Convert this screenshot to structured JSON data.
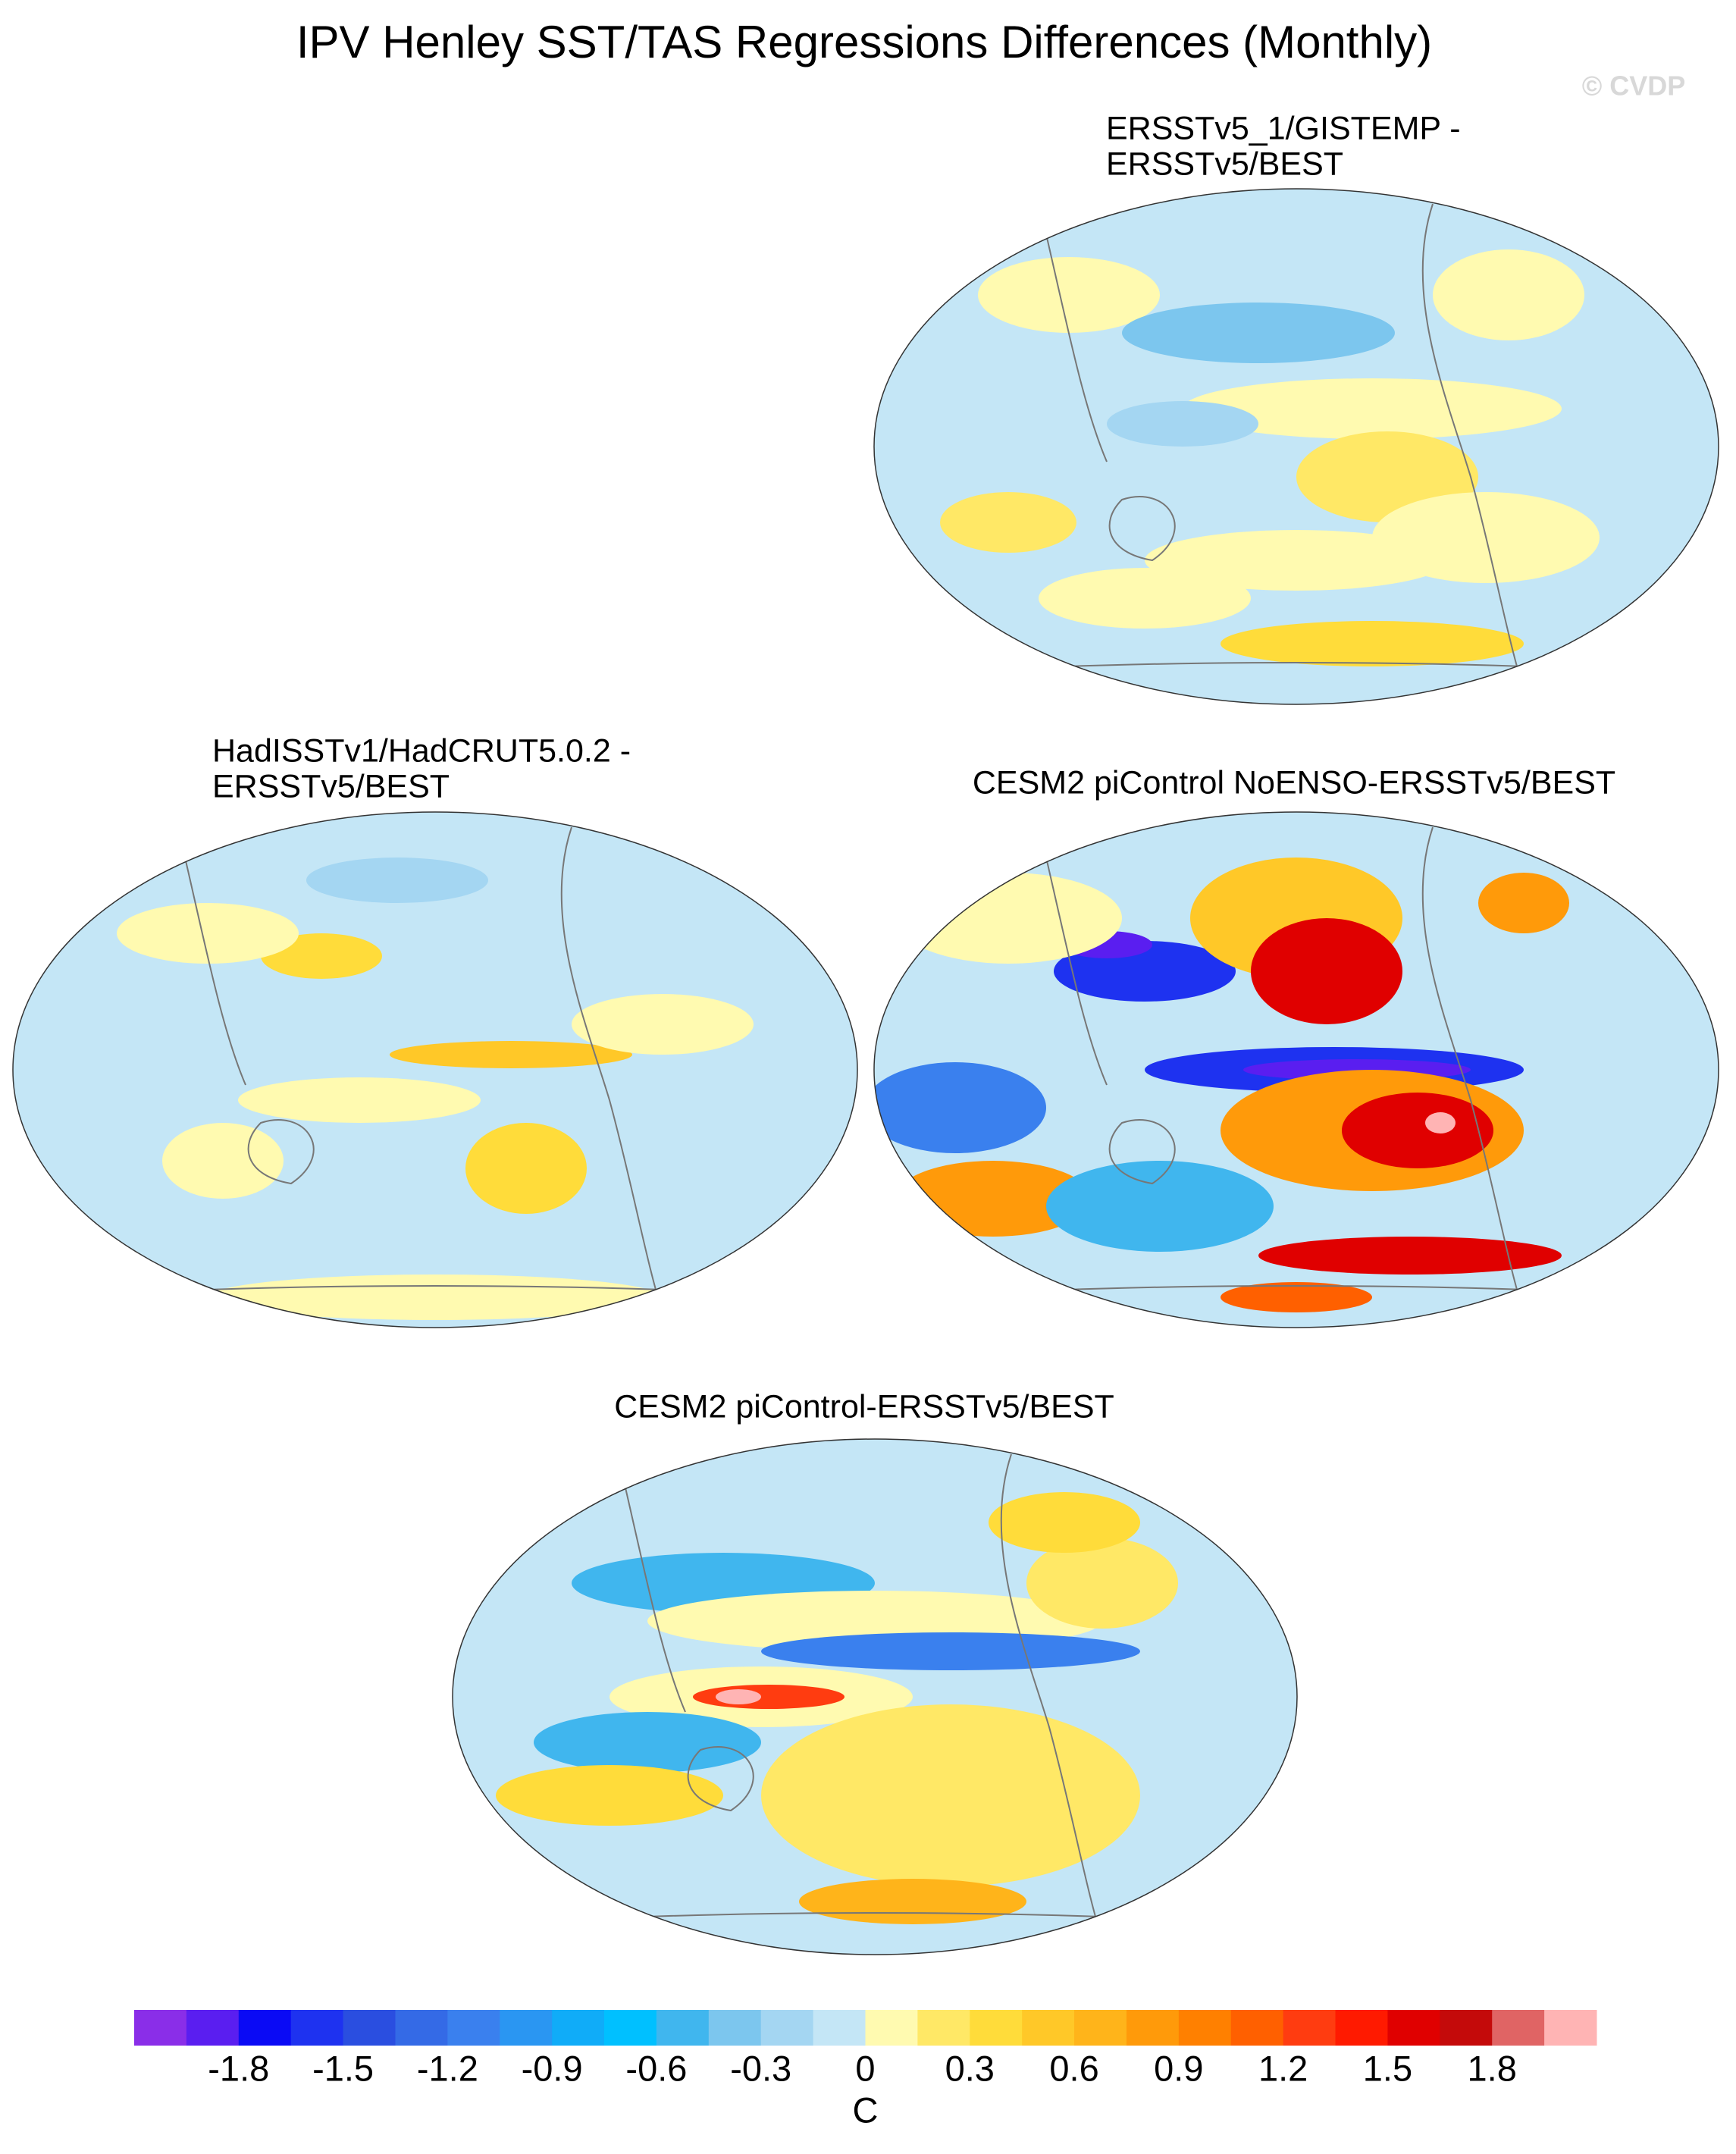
{
  "title": "IPV Henley SST/TAS Regressions Differences (Monthly)",
  "watermark": "© CVDP",
  "panels": [
    {
      "title_lines": [
        "ERSSTv5_1/GISTEMP -",
        "ERSSTv5/BEST"
      ]
    },
    {
      "title_lines": [
        "HadISSTv1/HadCRUT5.0.2 -",
        "ERSSTv5/BEST"
      ]
    },
    {
      "title_lines": [
        "CESM2 piControl NoENSO-ERSSTv5/BEST"
      ]
    },
    {
      "title_lines": [
        "CESM2 piControl-ERSSTv5/BEST"
      ]
    }
  ],
  "colorbar": {
    "colors": [
      "#8a2ee8",
      "#5a1ef0",
      "#0a0af5",
      "#1e32f0",
      "#2a4ee0",
      "#346ae6",
      "#3a80ee",
      "#2a96f2",
      "#10acf8",
      "#00c0ff",
      "#40b6ee",
      "#7cc6ee",
      "#a4d6f2",
      "#c4e6f6",
      "#fffab0",
      "#ffe866",
      "#ffdc3a",
      "#ffc828",
      "#ffb41a",
      "#ff9a0a",
      "#ff8000",
      "#ff6000",
      "#ff3c10",
      "#ff1a00",
      "#e00000",
      "#c40a0a",
      "#e06464",
      "#ffb4b4"
    ],
    "xlim": [
      -2.1,
      2.1
    ],
    "ticks": [
      -1.8,
      -1.5,
      -1.2,
      -0.9,
      -0.6,
      -0.3,
      0,
      0.3,
      0.6,
      0.9,
      1.2,
      1.5,
      1.8
    ],
    "unit": "C"
  }
}
